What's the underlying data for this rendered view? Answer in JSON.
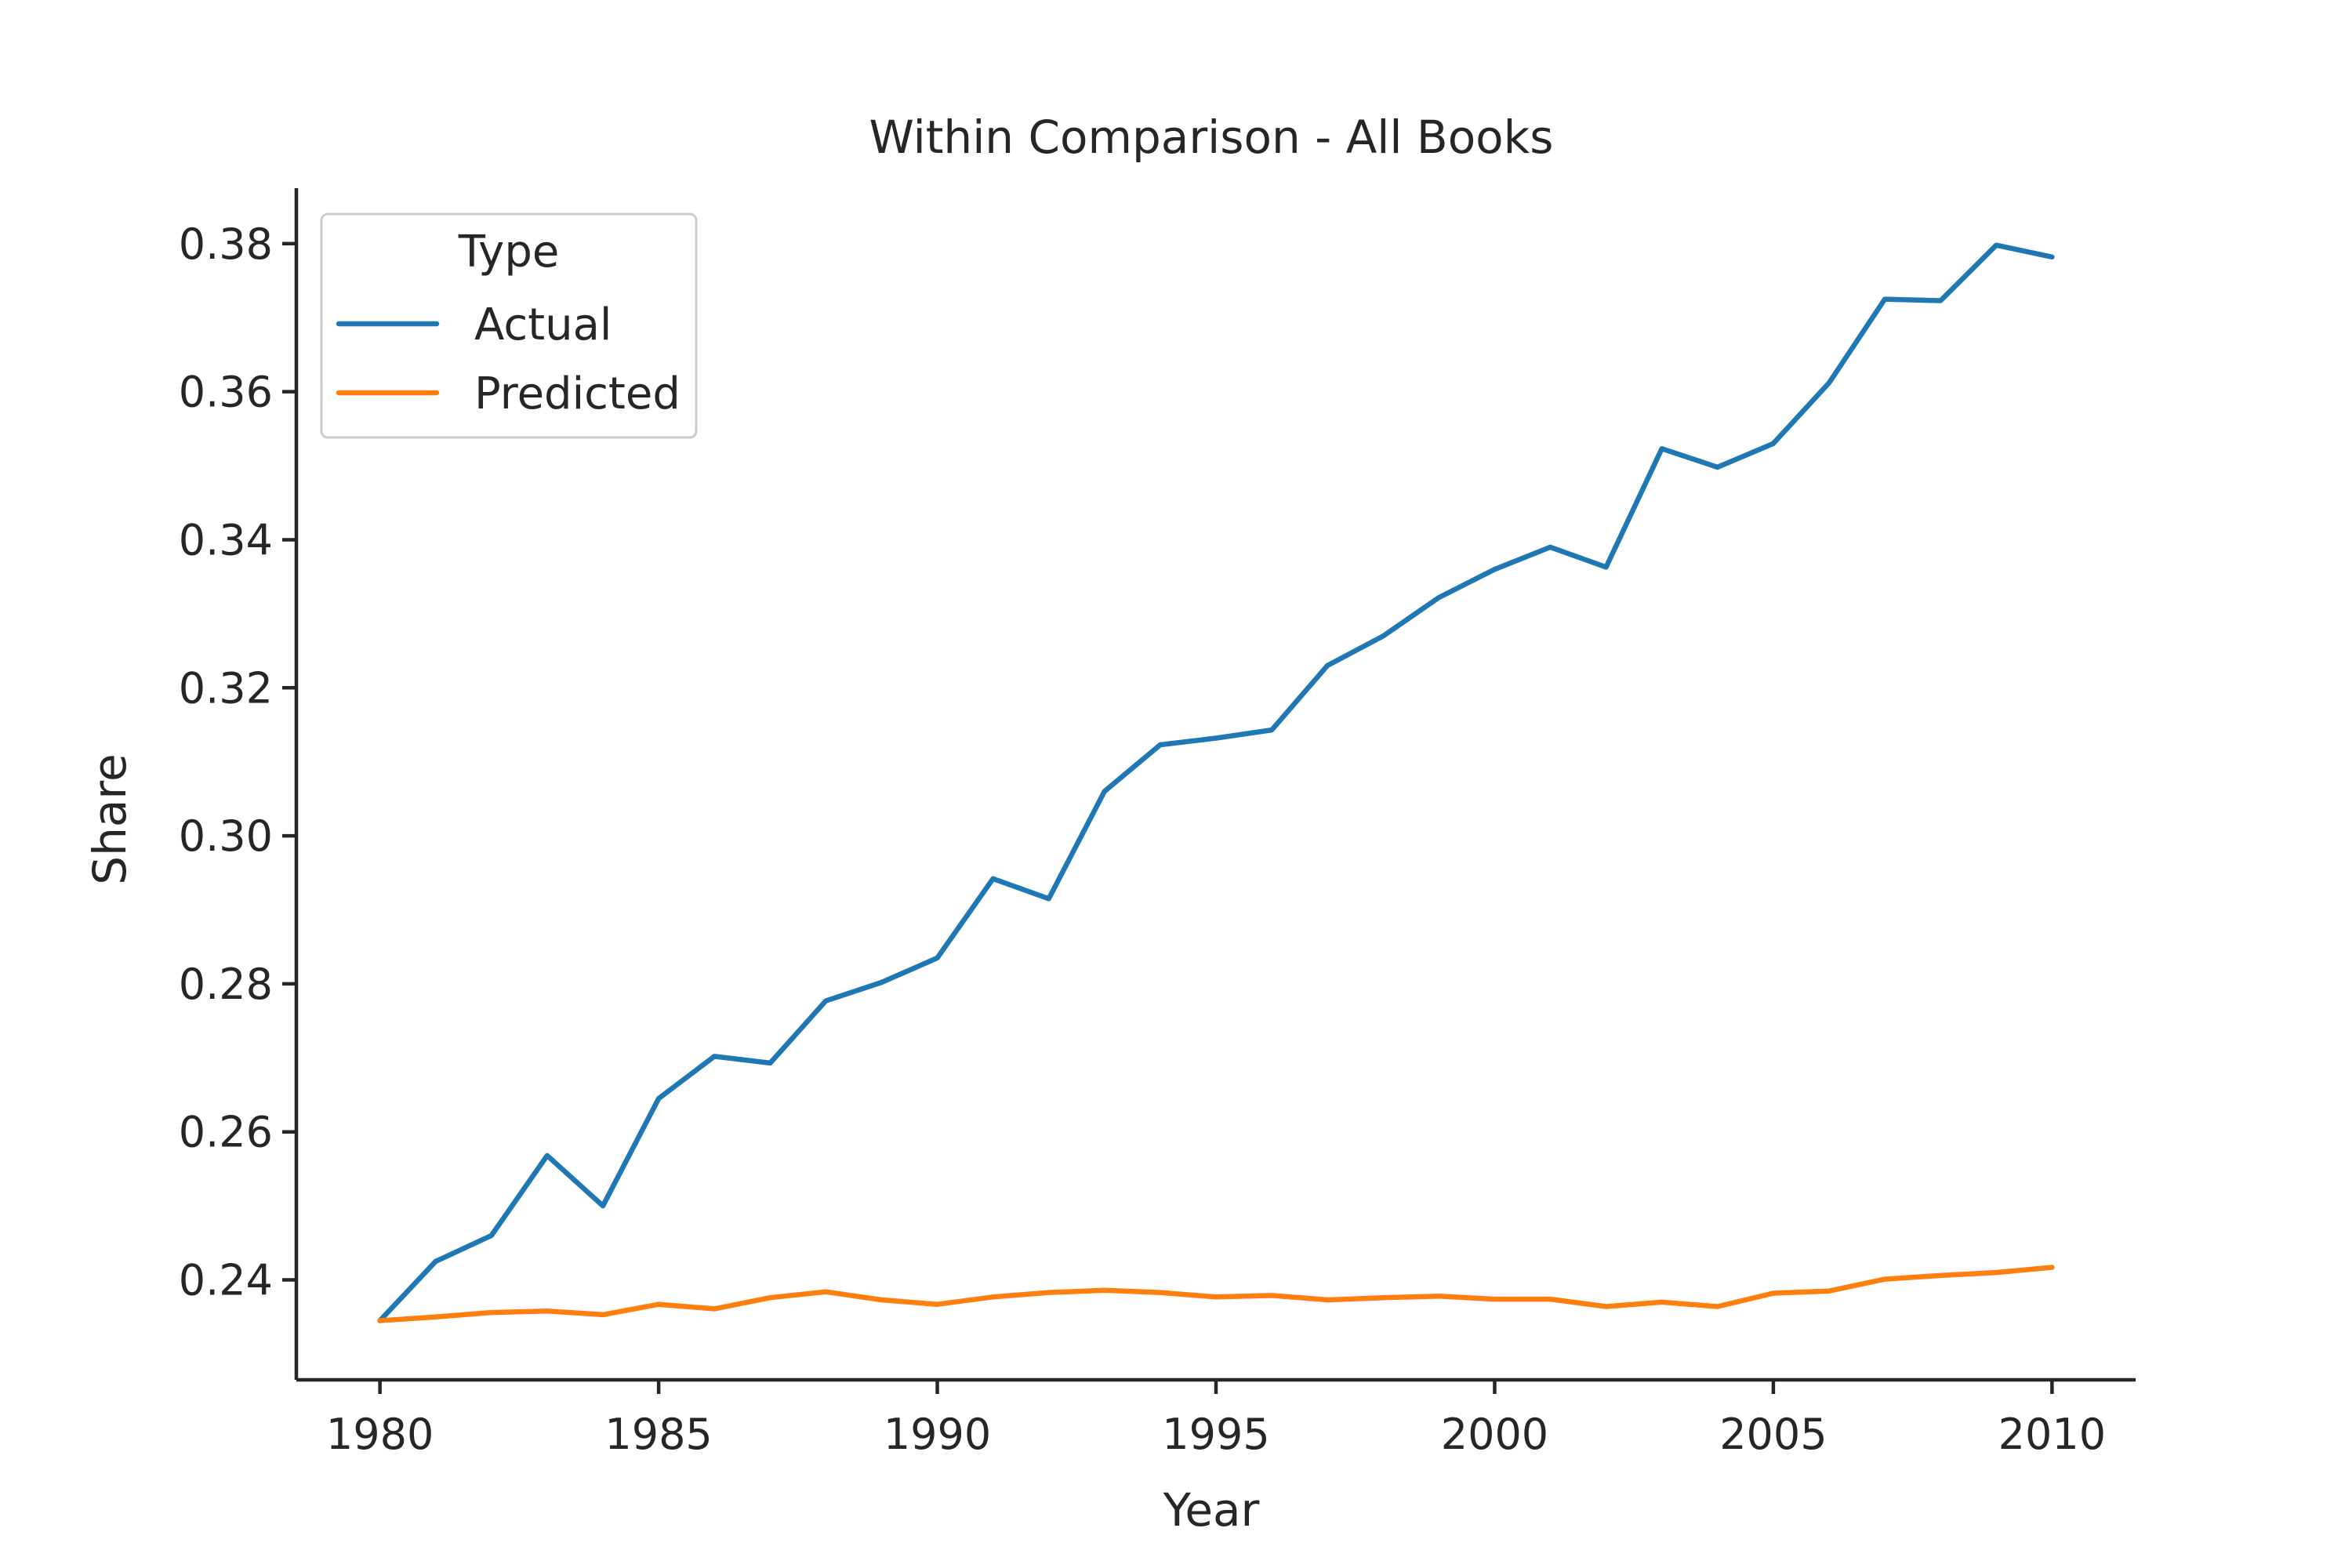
{
  "chart_data": {
    "type": "line",
    "title": "Within Comparison - All Books",
    "xlabel": "Year",
    "ylabel": "Share",
    "xlim": [
      1978.5,
      2011.5
    ],
    "ylim": [
      0.2265,
      0.3875
    ],
    "xticks": [
      1980,
      1985,
      1990,
      1995,
      2000,
      2005,
      2010
    ],
    "xtick_labels": [
      "1980",
      "1985",
      "1990",
      "1995",
      "2000",
      "2005",
      "2010"
    ],
    "yticks": [
      0.24,
      0.26,
      0.28,
      0.3,
      0.32,
      0.34,
      0.36,
      0.38
    ],
    "ytick_labels": [
      "0.24",
      "0.26",
      "0.28",
      "0.30",
      "0.32",
      "0.34",
      "0.36",
      "0.38"
    ],
    "grid": false,
    "legend": {
      "title": "Type",
      "position": "upper-left"
    },
    "x": [
      1980,
      1981,
      1982,
      1983,
      1984,
      1985,
      1986,
      1987,
      1988,
      1989,
      1990,
      1991,
      1992,
      1993,
      1994,
      1995,
      1996,
      1997,
      1998,
      1999,
      2000,
      2001,
      2002,
      2003,
      2004,
      2005,
      2006,
      2007,
      2008,
      2009,
      2010
    ],
    "series": [
      {
        "name": "Actual",
        "color": "#1f77b4",
        "values": [
          0.2345,
          0.2425,
          0.246,
          0.2568,
          0.25,
          0.2645,
          0.2702,
          0.2693,
          0.2777,
          0.2802,
          0.2835,
          0.2942,
          0.2915,
          0.306,
          0.3123,
          0.3132,
          0.3143,
          0.323,
          0.327,
          0.3322,
          0.336,
          0.339,
          0.3363,
          0.3523,
          0.3498,
          0.353,
          0.3612,
          0.3725,
          0.3723,
          0.3798,
          0.3782
        ]
      },
      {
        "name": "Predicted",
        "color": "#ff7f0e",
        "values": [
          0.2345,
          0.235,
          0.2356,
          0.2358,
          0.2353,
          0.2367,
          0.2361,
          0.2376,
          0.2384,
          0.2373,
          0.2367,
          0.2377,
          0.2383,
          0.2386,
          0.2383,
          0.2377,
          0.2379,
          0.2373,
          0.2376,
          0.2378,
          0.2374,
          0.2374,
          0.2364,
          0.237,
          0.2364,
          0.2382,
          0.2385,
          0.2401,
          0.2406,
          0.241,
          0.2417
        ]
      }
    ]
  }
}
